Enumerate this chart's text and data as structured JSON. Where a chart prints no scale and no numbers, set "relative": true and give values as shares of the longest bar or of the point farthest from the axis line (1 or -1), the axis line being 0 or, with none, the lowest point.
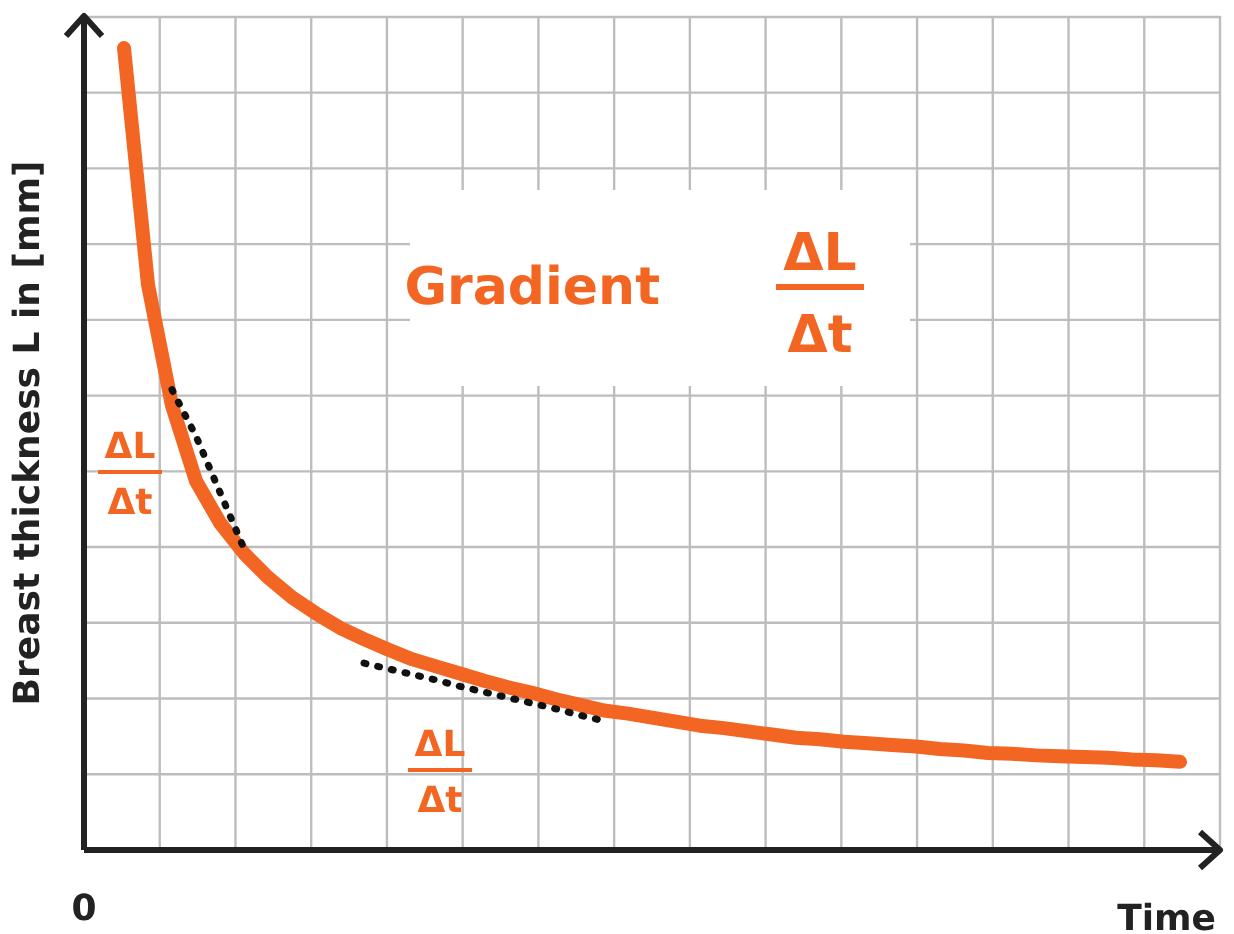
{
  "chart_data": {
    "type": "line",
    "relative": true,
    "xlabel": "Time",
    "ylabel": "Breast thickness L in [mm]",
    "grid": true,
    "categories": [
      null,
      null,
      null,
      null,
      null,
      null,
      null,
      null,
      null,
      null,
      null,
      null,
      null,
      null,
      null,
      null,
      null,
      null,
      null,
      null,
      null,
      null,
      null,
      null,
      null,
      null,
      null,
      null,
      null,
      null,
      null,
      null,
      null,
      null,
      null,
      null,
      null,
      null,
      null,
      null,
      null,
      null,
      null,
      null,
      null
    ],
    "series": [
      {
        "color": "#f26522",
        "line_style": "solid",
        "values": [
          1,
          0.705,
          0.554,
          0.46,
          0.408,
          0.37,
          0.34,
          0.315,
          0.295,
          0.277,
          0.263,
          0.25,
          0.238,
          0.229,
          0.22,
          0.211,
          0.203,
          0.196,
          0.188,
          0.181,
          0.174,
          0.17,
          0.165,
          0.16,
          0.155,
          0.152,
          0.148,
          0.144,
          0.14,
          0.138,
          0.135,
          0.133,
          0.131,
          0.129,
          0.126,
          0.124,
          0.121,
          0.12,
          0.118,
          0.117,
          0.116,
          0.115,
          0.113,
          0.112,
          0.11
        ]
      },
      {
        "color": "#111111",
        "line_style": "dotted",
        "values": [
          null,
          null,
          0.574,
          0.516,
          0.446,
          0.376,
          null,
          null,
          null,
          null,
          null,
          null,
          null,
          null,
          null,
          null,
          null,
          null,
          null,
          null,
          null,
          null,
          null,
          null,
          null,
          null,
          null,
          null,
          null,
          null,
          null,
          null,
          null,
          null,
          null,
          null,
          null,
          null,
          null,
          null,
          null,
          null,
          null,
          null,
          null
        ]
      },
      {
        "color": "#111111",
        "line_style": "dotted",
        "values": [
          null,
          null,
          null,
          null,
          null,
          null,
          null,
          null,
          null,
          null,
          0.233,
          0.226,
          0.219,
          0.212,
          0.204,
          0.197,
          0.19,
          0.183,
          0.176,
          0.168,
          0.161,
          null,
          null,
          null,
          null,
          null,
          null,
          null,
          null,
          null,
          null,
          null,
          null,
          null,
          null,
          null,
          null,
          null,
          null,
          null,
          null,
          null,
          null,
          null,
          null
        ]
      }
    ],
    "annotations": [
      "Gradient",
      "ΔL",
      "Δt",
      "ΔL",
      "Δt",
      "ΔL",
      "Δt",
      "0"
    ]
  }
}
